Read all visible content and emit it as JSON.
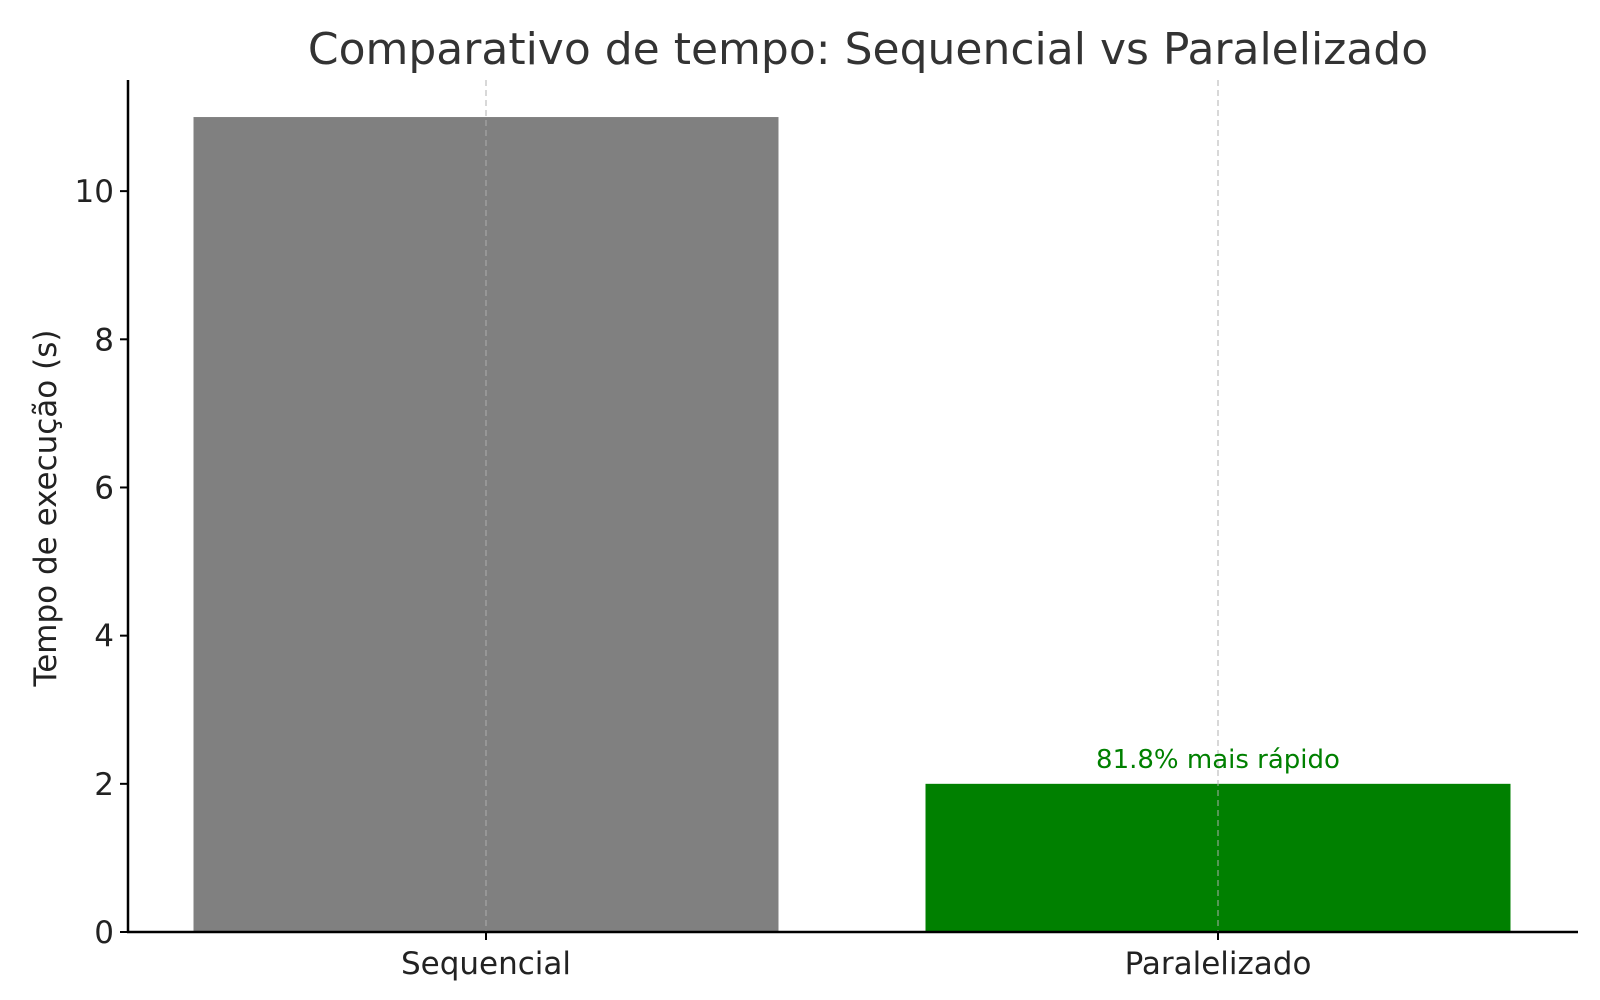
{
  "chart_data": {
    "type": "bar",
    "title": "Comparativo de tempo: Sequencial vs Paralelizado",
    "xlabel": "",
    "ylabel": "Tempo de execução (s)",
    "categories": [
      "Sequencial",
      "Paralelizado"
    ],
    "values": [
      11,
      2
    ],
    "colors": [
      "#808080",
      "#008000"
    ],
    "ylim": [
      0,
      11.5
    ],
    "yticks": [
      0,
      2,
      4,
      6,
      8,
      10
    ],
    "grid": "x dashed",
    "annotations": [
      {
        "category": "Paralelizado",
        "text": "81.8% mais rápido",
        "color": "#008000"
      }
    ]
  }
}
